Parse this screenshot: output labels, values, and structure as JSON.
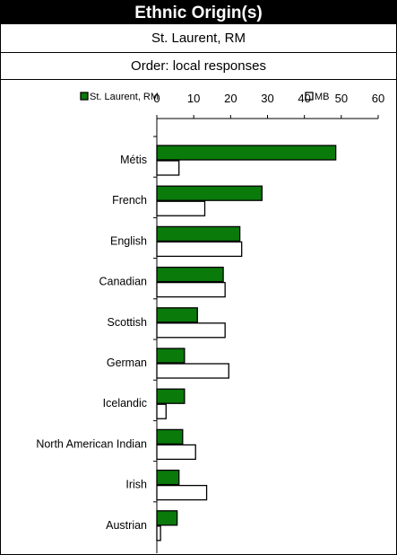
{
  "header": {
    "title": "Ethnic Origin(s)",
    "location": "St. Laurent, RM",
    "order": "Order: local responses"
  },
  "chart_data": {
    "type": "bar",
    "orientation": "horizontal",
    "categories": [
      "Métis",
      "French",
      "English",
      "Canadian",
      "Scottish",
      "German",
      "Icelandic",
      "North American Indian",
      "Irish",
      "Austrian"
    ],
    "series": [
      {
        "name": "St. Laurent, RM",
        "color": "#0a7a0a",
        "values": [
          48.5,
          28.5,
          22.5,
          18,
          11,
          7.5,
          7.5,
          7,
          6,
          5.5
        ]
      },
      {
        "name": "MB",
        "color": "#ffffff",
        "values": [
          6,
          13,
          23,
          18.5,
          18.5,
          19.5,
          2.5,
          10.5,
          13.5,
          1
        ]
      }
    ],
    "xlim": [
      0,
      60
    ],
    "xticks": [
      "0",
      "10",
      "20",
      "30",
      "40",
      "50",
      "60"
    ],
    "legend_position": "top",
    "grid": false
  }
}
